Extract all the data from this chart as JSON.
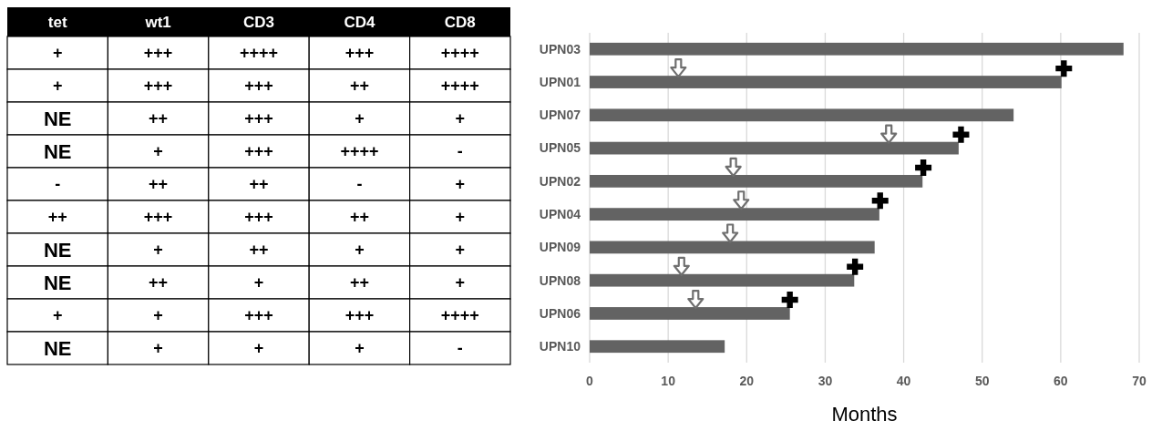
{
  "chart_data": [
    {
      "type": "other",
      "categories": [
        "tet",
        "wt1",
        "CD3",
        "CD4",
        "CD8"
      ],
      "cell_labels": [
        [
          "+",
          "+++",
          "++++",
          "+++",
          "++++"
        ],
        [
          "+",
          "+++",
          "+++",
          "++",
          "++++"
        ],
        [
          "NE",
          "++",
          "+++",
          "+",
          "+"
        ],
        [
          "NE",
          "+",
          "+++",
          "++++",
          "-"
        ],
        [
          "-",
          "++",
          "++",
          "-",
          "+"
        ],
        [
          "++",
          "+++",
          "+++",
          "++",
          "+"
        ],
        [
          "NE",
          "+",
          "++",
          "+",
          "+"
        ],
        [
          "NE",
          "++",
          "+",
          "++",
          "+"
        ],
        [
          "+",
          "+",
          "+++",
          "+++",
          "++++"
        ],
        [
          "NE",
          "+",
          "+",
          "+",
          "-"
        ]
      ]
    },
    {
      "type": "bar",
      "orientation": "horizontal",
      "categories": [
        "UPN03",
        "UPN01",
        "UPN07",
        "UPN05",
        "UPN02",
        "UPN04",
        "UPN09",
        "UPN08",
        "UPN06",
        "UPN10"
      ],
      "xlabel": "Months",
      "xlim": [
        0,
        70
      ],
      "xticks": [
        0,
        10,
        20,
        30,
        40,
        50,
        60,
        70
      ],
      "grid": "x",
      "series": [
        {
          "type": "bar",
          "color": "#636363",
          "values": [
            68,
            60.1,
            54,
            47,
            42.4,
            36.9,
            36.3,
            33.7,
            25.5,
            17.2
          ]
        },
        {
          "type": "scatter",
          "marker": "triangle",
          "color": "#6f6f6f",
          "values": [
            null,
            11.3,
            null,
            38.1,
            18.3,
            19.3,
            17.9,
            11.7,
            13.5,
            null
          ]
        },
        {
          "type": "scatter",
          "marker": "cross",
          "color": "#000000",
          "values": [
            null,
            60.4,
            null,
            47.3,
            42.5,
            37,
            null,
            33.8,
            25.5,
            null
          ]
        }
      ]
    }
  ]
}
